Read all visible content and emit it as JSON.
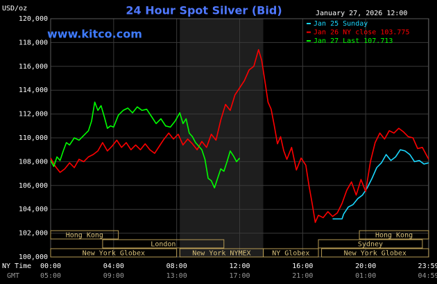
{
  "chart_data": {
    "type": "line",
    "title": "24 Hour Spot Silver (Bid)",
    "y_label": "USD/oz",
    "source": "www.kitco.com",
    "timestamp": "January 27, 2026 12:00",
    "x_label": "NY Time",
    "x2_label": "GMT",
    "xlim": [
      0,
      24
    ],
    "xticks": [
      {
        "value": 0,
        "label": "00:00"
      },
      {
        "value": 4,
        "label": "04:00"
      },
      {
        "value": 8,
        "label": "08:00"
      },
      {
        "value": 12,
        "label": "12:00"
      },
      {
        "value": 16,
        "label": "16:00"
      },
      {
        "value": 20,
        "label": "20:00"
      },
      {
        "value": 23.983,
        "label": "23:59"
      }
    ],
    "x2_tick_labels": [
      "05:00",
      "09:00",
      "13:00",
      "17:00",
      "21:00",
      "01:00",
      "04:59"
    ],
    "ylim": [
      100,
      120
    ],
    "yticks": [
      {
        "value": 100,
        "label": "100,000"
      },
      {
        "value": 102,
        "label": "102,000"
      },
      {
        "value": 104,
        "label": "104,000"
      },
      {
        "value": 106,
        "label": "106,000"
      },
      {
        "value": 108,
        "label": "108,000"
      },
      {
        "value": 110,
        "label": "110,000"
      },
      {
        "value": 112,
        "label": "112,000"
      },
      {
        "value": 114,
        "label": "114,000"
      },
      {
        "value": 116,
        "label": "116,000"
      },
      {
        "value": 118,
        "label": "118,000"
      },
      {
        "value": 120,
        "label": "120,000"
      }
    ],
    "grid": true,
    "shaded_xlim": [
      8.2,
      13.5
    ],
    "sessions": [
      {
        "label": "Hong Kong",
        "start": 0,
        "end": 4.3
      },
      {
        "label": "London",
        "start": 3.3,
        "end": 11
      },
      {
        "label": "New York Globex",
        "start": 0,
        "end": 8
      },
      {
        "label": "New York NYMEX",
        "start": 8.2,
        "end": 13.5
      },
      {
        "label": "NY Globex",
        "start": 13.5,
        "end": 17
      },
      {
        "label": "Hong Kong",
        "start": 19.6,
        "end": 24
      },
      {
        "label": "Sydney",
        "start": 17,
        "end": 23.6
      },
      {
        "label": "New York Globex",
        "start": 17.2,
        "end": 24
      }
    ],
    "series": [
      {
        "name": "Jan 25 Sunday",
        "color": "#1ad8ff",
        "x": [
          17.9,
          18.5,
          18.6,
          18.9,
          19.2,
          19.5,
          19.8,
          20.1,
          20.4,
          20.7,
          21.0,
          21.3,
          21.6,
          21.9,
          22.2,
          22.5,
          22.8,
          23.1,
          23.4,
          23.7,
          24.0
        ],
        "values": [
          103.2,
          103.2,
          103.6,
          104.2,
          104.4,
          104.9,
          105.2,
          105.8,
          106.6,
          107.5,
          107.9,
          108.6,
          108.1,
          108.4,
          109.0,
          108.9,
          108.6,
          108.0,
          108.1,
          107.8,
          107.9
        ]
      },
      {
        "name": "Jan 26 NY close 103.775",
        "color": "#ff0000",
        "x": [
          0,
          0.3,
          0.6,
          0.9,
          1.2,
          1.5,
          1.8,
          2.1,
          2.4,
          2.7,
          3.0,
          3.3,
          3.6,
          3.9,
          4.2,
          4.5,
          4.8,
          5.1,
          5.4,
          5.7,
          6.0,
          6.3,
          6.6,
          6.9,
          7.2,
          7.5,
          7.8,
          8.1,
          8.4,
          8.7,
          9.0,
          9.3,
          9.6,
          9.9,
          10.2,
          10.5,
          10.8,
          11.1,
          11.4,
          11.7,
          12.0,
          12.3,
          12.6,
          12.9,
          13.2,
          13.4,
          13.6,
          13.8,
          14.0,
          14.2,
          14.4,
          14.6,
          14.8,
          15.0,
          15.3,
          15.6,
          15.9,
          16.2,
          16.4,
          16.6,
          16.8,
          17.0,
          17.3,
          17.6,
          17.9,
          18.2,
          18.5,
          18.8,
          19.1,
          19.4,
          19.7,
          20.0,
          20.3,
          20.6,
          20.9,
          21.2,
          21.5,
          21.8,
          22.1,
          22.4,
          22.7,
          23.0,
          23.3,
          23.6,
          24.0
        ],
        "values": [
          108.3,
          107.6,
          107.1,
          107.4,
          107.9,
          107.5,
          108.2,
          108.0,
          108.4,
          108.6,
          108.9,
          109.6,
          108.9,
          109.3,
          109.8,
          109.2,
          109.6,
          109.0,
          109.4,
          109.0,
          109.5,
          109.0,
          108.7,
          109.3,
          109.9,
          110.4,
          109.9,
          110.3,
          109.4,
          109.9,
          109.5,
          109.0,
          109.7,
          109.2,
          110.3,
          109.8,
          111.5,
          112.8,
          112.3,
          113.6,
          114.2,
          114.8,
          115.7,
          116.0,
          117.4,
          116.5,
          114.8,
          113.0,
          112.4,
          111.0,
          109.5,
          110.1,
          108.9,
          108.2,
          109.2,
          107.3,
          108.3,
          107.7,
          106.0,
          104.5,
          102.9,
          103.5,
          103.3,
          103.8,
          103.4,
          103.7,
          104.5,
          105.6,
          106.3,
          105.2,
          106.5,
          105.5,
          108.0,
          109.6,
          110.4,
          109.9,
          110.6,
          110.4,
          110.8,
          110.5,
          110.1,
          110.0,
          109.1,
          109.2,
          108.2
        ]
      },
      {
        "name": "Jan 27 Last 107.713",
        "color": "#00ff00",
        "x": [
          0,
          0.2,
          0.4,
          0.6,
          0.8,
          1.0,
          1.2,
          1.5,
          1.8,
          2.1,
          2.4,
          2.6,
          2.8,
          3.0,
          3.2,
          3.4,
          3.6,
          3.8,
          4.0,
          4.3,
          4.6,
          4.9,
          5.2,
          5.5,
          5.8,
          6.1,
          6.4,
          6.7,
          7.0,
          7.3,
          7.6,
          7.9,
          8.2,
          8.4,
          8.6,
          8.8,
          9.0,
          9.2,
          9.4,
          9.6,
          9.8,
          10.0,
          10.2,
          10.4,
          10.6,
          10.8,
          11.0,
          11.2,
          11.4,
          11.6,
          11.8,
          12.0
        ],
        "values": [
          108.1,
          107.6,
          108.4,
          108.1,
          108.9,
          109.6,
          109.4,
          110.0,
          109.8,
          110.2,
          110.6,
          111.4,
          113.0,
          112.3,
          112.7,
          111.8,
          110.8,
          111.0,
          110.9,
          111.9,
          112.3,
          112.5,
          112.1,
          112.6,
          112.3,
          112.4,
          111.8,
          111.2,
          111.6,
          111.0,
          110.9,
          111.4,
          112.1,
          111.2,
          111.6,
          110.4,
          110.1,
          109.6,
          109.3,
          109.0,
          108.2,
          106.6,
          106.4,
          105.8,
          106.6,
          107.4,
          107.2,
          108.0,
          108.9,
          108.5,
          108.0,
          108.3
        ]
      }
    ]
  }
}
